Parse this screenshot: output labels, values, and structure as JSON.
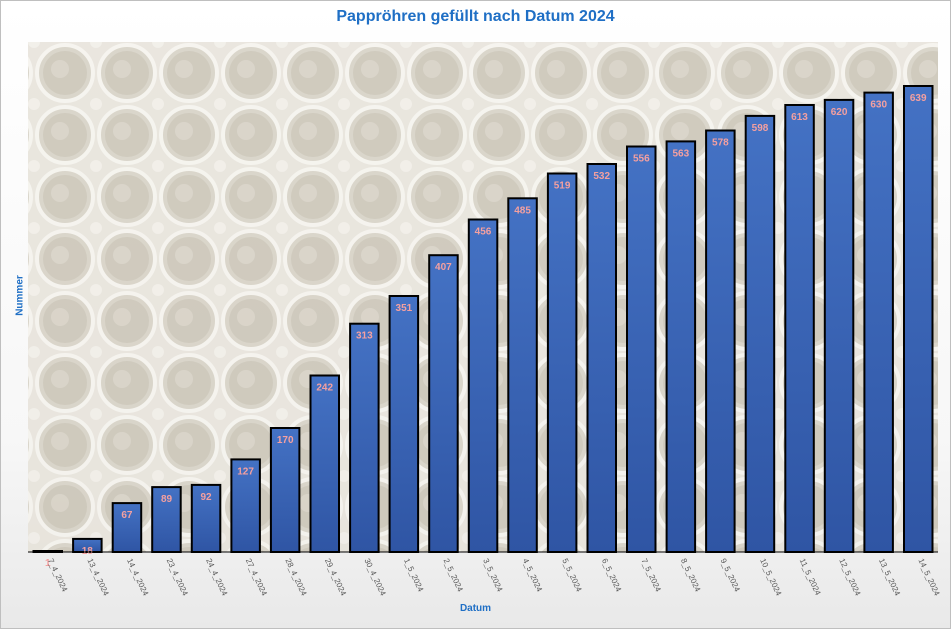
{
  "chart_data": {
    "type": "bar",
    "title": "Pappröhren gefüllt nach Datum 2024",
    "xlabel": "Datum",
    "ylabel": "Nummer",
    "categories": [
      "7_4_2024",
      "13_4_2024",
      "14_4_2024",
      "23_4_2024",
      "24_4_2024",
      "27_4_2024",
      "28_4_2024",
      "29_4_2024",
      "30_4_2024",
      "1_5_2024",
      "2_5_2024",
      "3_5_2024",
      "4_5_2024",
      "5_5_2024",
      "6_5_2024",
      "7_5_2024",
      "8_5_2024",
      "9_5_2024",
      "10_5_2024",
      "11_5_2024",
      "12_5_2024",
      "13_5_2024",
      "14_5_2024"
    ],
    "values": [
      1,
      18,
      67,
      89,
      92,
      127,
      170,
      242,
      313,
      351,
      407,
      456,
      485,
      519,
      532,
      556,
      563,
      578,
      598,
      613,
      620,
      630,
      639
    ],
    "ylim": [
      0,
      639
    ],
    "grid": false,
    "legend": "none",
    "colors": {
      "bar": "#4472c4",
      "bar_dark": "#2f55a4",
      "bar_border": "#000000",
      "data_label": "#f4a0a0",
      "title": "#1f6fc5",
      "axis_tick": "#595959"
    }
  }
}
